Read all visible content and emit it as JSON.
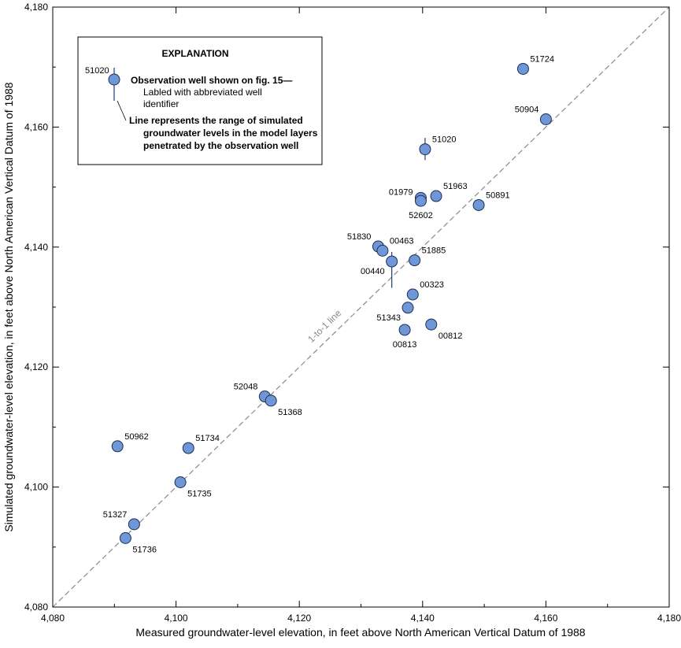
{
  "colors": {
    "marker_fill": "#6f96d6",
    "marker_stroke": "#1e2f55",
    "range_line": "#1e3a6e",
    "one_to_one": "#8a8a8a",
    "axis": "#000000"
  },
  "chart_data": {
    "type": "scatter",
    "xlabel": "Measured groundwater-level elevation, in feet above North American Vertical Datum of 1988",
    "ylabel": "Simulated groundwater-level elevation, in feet above North American Vertical Datum of 1988",
    "xlim": [
      4080,
      4180
    ],
    "ylim": [
      4080,
      4180
    ],
    "x_ticks": [
      4080,
      4100,
      4120,
      4140,
      4160,
      4180
    ],
    "y_ticks": [
      4080,
      4100,
      4120,
      4140,
      4160,
      4180
    ],
    "x_tick_labels": [
      "4,080",
      "4,100",
      "4,120",
      "4,140",
      "4,160",
      "4,180"
    ],
    "y_tick_labels": [
      "4,080",
      "4,100",
      "4,120",
      "4,140",
      "4,160",
      "4,180"
    ],
    "grid": false,
    "reference_line": {
      "label": "1-to-1 line",
      "from": [
        4080,
        4080
      ],
      "to": [
        4180,
        4180
      ]
    },
    "points": [
      {
        "id": "51724",
        "x": 4156.3,
        "y": 4169.7,
        "label_pos": "upper-right"
      },
      {
        "id": "50904",
        "x": 4160.0,
        "y": 4161.3,
        "label_pos": "upper-left"
      },
      {
        "id": "51020",
        "x": 4140.4,
        "y": 4156.3,
        "range": [
          4154.5,
          4158.2
        ],
        "label_pos": "upper-right"
      },
      {
        "id": "01979",
        "x": 4139.7,
        "y": 4148.2,
        "label_pos": "left"
      },
      {
        "id": "51963",
        "x": 4142.2,
        "y": 4148.5,
        "label_pos": "upper-right"
      },
      {
        "id": "52602",
        "x": 4139.7,
        "y": 4147.7,
        "label_pos": "below"
      },
      {
        "id": "50891",
        "x": 4149.1,
        "y": 4147.0,
        "label_pos": "upper-right"
      },
      {
        "id": "51830",
        "x": 4132.8,
        "y": 4140.1,
        "label_pos": "upper-left"
      },
      {
        "id": "00463",
        "x": 4133.5,
        "y": 4139.4,
        "label_pos": "upper-right"
      },
      {
        "id": "51885",
        "x": 4138.7,
        "y": 4137.8,
        "label_pos": "upper-right"
      },
      {
        "id": "00440",
        "x": 4135.0,
        "y": 4137.6,
        "range": [
          4133.2,
          4139.2
        ],
        "label_pos": "lower-left"
      },
      {
        "id": "00323",
        "x": 4138.4,
        "y": 4132.1,
        "label_pos": "upper-right"
      },
      {
        "id": "51343",
        "x": 4137.6,
        "y": 4129.9,
        "label_pos": "lower-left"
      },
      {
        "id": "00813",
        "x": 4137.1,
        "y": 4126.2,
        "label_pos": "below"
      },
      {
        "id": "00812",
        "x": 4141.4,
        "y": 4127.1,
        "label_pos": "lower-right"
      },
      {
        "id": "52048",
        "x": 4114.4,
        "y": 4115.1,
        "label_pos": "upper-left"
      },
      {
        "id": "51368",
        "x": 4115.4,
        "y": 4114.4,
        "label_pos": "lower-right"
      },
      {
        "id": "50962",
        "x": 4090.5,
        "y": 4106.8,
        "label_pos": "upper-right"
      },
      {
        "id": "51734",
        "x": 4102.0,
        "y": 4106.5,
        "label_pos": "upper-right"
      },
      {
        "id": "51735",
        "x": 4100.7,
        "y": 4100.8,
        "label_pos": "lower-right"
      },
      {
        "id": "51327",
        "x": 4093.2,
        "y": 4093.8,
        "label_pos": "upper-left"
      },
      {
        "id": "51736",
        "x": 4091.8,
        "y": 4091.5,
        "label_pos": "lower-right"
      }
    ]
  },
  "legend": {
    "title": "EXPLANATION",
    "example_id": "51020",
    "line1_bold": "Observation well shown on fig. 15—",
    "line2": "Labled with abbreviated well",
    "line3": "identifier",
    "range_bold_1": "Line represents the range of simulated",
    "range_bold_2": "groundwater levels in the model layers",
    "range_bold_3": "penetrated by the observation well"
  }
}
